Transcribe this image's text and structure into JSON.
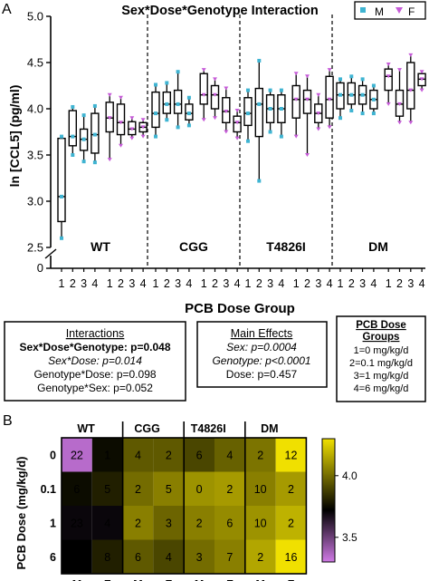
{
  "panel_a_label": "A",
  "panel_b_label": "B",
  "legend": {
    "male_label": "M",
    "female_label": "F",
    "male_color": "#3fb4d2",
    "female_color": "#c65bd8"
  },
  "chart_data": [
    {
      "type": "box",
      "title": "Sex*Dose*Genotype Interaction",
      "ylabel": "ln [CCL5] (pg/ml)",
      "xlabel": "PCB Dose Group",
      "ylim": [
        2.5,
        5.0
      ],
      "yticks": [
        "2.5",
        "3.0",
        "3.5",
        "4.0",
        "4.5",
        "5.0"
      ],
      "y_axis_break": "0",
      "genotypes": [
        "WT",
        "CGG",
        "T4826I",
        "DM"
      ],
      "doses": [
        "1",
        "2",
        "3",
        "4"
      ],
      "series": [
        {
          "genotype": "WT",
          "dose": "1",
          "whisker": [
            2.6,
            3.7
          ],
          "q1": 2.78,
          "median": 3.05,
          "q3": 3.68
        },
        {
          "genotype": "WT",
          "dose": "2",
          "whisker": [
            3.5,
            4.02
          ],
          "q1": 3.6,
          "median": 3.7,
          "q3": 3.98
        },
        {
          "genotype": "WT",
          "dose": "3",
          "whisker": [
            3.43,
            3.93
          ],
          "q1": 3.55,
          "median": 3.67,
          "q3": 3.78
        },
        {
          "genotype": "WT",
          "dose": "4",
          "whisker": [
            3.42,
            4.03
          ],
          "q1": 3.52,
          "median": 3.72,
          "q3": 3.95
        },
        {
          "genotype": "WT",
          "dose": "1b",
          "whisker": [
            3.45,
            4.15
          ],
          "q1": 3.75,
          "median": 3.9,
          "q3": 4.07
        },
        {
          "genotype": "WT",
          "dose": "2b",
          "whisker": [
            3.6,
            4.12
          ],
          "q1": 3.72,
          "median": 3.85,
          "q3": 4.05
        },
        {
          "genotype": "WT",
          "dose": "3b",
          "whisker": [
            3.68,
            3.9
          ],
          "q1": 3.72,
          "median": 3.78,
          "q3": 3.86
        },
        {
          "genotype": "WT",
          "dose": "4b",
          "whisker": [
            3.7,
            3.88
          ],
          "q1": 3.75,
          "median": 3.8,
          "q3": 3.85
        },
        {
          "genotype": "CGG",
          "dose": "1",
          "whisker": [
            3.7,
            4.26
          ],
          "q1": 3.8,
          "median": 3.95,
          "q3": 4.18
        },
        {
          "genotype": "CGG",
          "dose": "2",
          "whisker": [
            3.88,
            4.28
          ],
          "q1": 3.95,
          "median": 4.05,
          "q3": 4.18
        },
        {
          "genotype": "CGG",
          "dose": "3",
          "whisker": [
            3.8,
            4.4
          ],
          "q1": 3.95,
          "median": 4.05,
          "q3": 4.2
        },
        {
          "genotype": "CGG",
          "dose": "4",
          "whisker": [
            3.82,
            4.12
          ],
          "q1": 3.88,
          "median": 3.95,
          "q3": 4.05
        },
        {
          "genotype": "CGG",
          "dose": "1b",
          "whisker": [
            3.88,
            4.42
          ],
          "q1": 4.05,
          "median": 4.15,
          "q3": 4.38
        },
        {
          "genotype": "CGG",
          "dose": "2b",
          "whisker": [
            3.9,
            4.32
          ],
          "q1": 4.0,
          "median": 4.15,
          "q3": 4.25
        },
        {
          "genotype": "CGG",
          "dose": "3b",
          "whisker": [
            3.75,
            4.22
          ],
          "q1": 3.85,
          "median": 3.97,
          "q3": 4.12
        },
        {
          "genotype": "CGG",
          "dose": "4b",
          "whisker": [
            3.68,
            3.98
          ],
          "q1": 3.75,
          "median": 3.85,
          "q3": 3.92
        },
        {
          "genotype": "T4826I",
          "dose": "1",
          "whisker": [
            3.65,
            4.2
          ],
          "q1": 3.82,
          "median": 3.95,
          "q3": 4.12
        },
        {
          "genotype": "T4826I",
          "dose": "2",
          "whisker": [
            3.22,
            4.52
          ],
          "q1": 3.7,
          "median": 4.05,
          "q3": 4.22
        },
        {
          "genotype": "T4826I",
          "dose": "3",
          "whisker": [
            3.75,
            4.2
          ],
          "q1": 3.85,
          "median": 4.0,
          "q3": 4.15
        },
        {
          "genotype": "T4826I",
          "dose": "4",
          "whisker": [
            3.7,
            4.2
          ],
          "q1": 3.85,
          "median": 4.0,
          "q3": 4.15
        },
        {
          "genotype": "T4826I",
          "dose": "1b",
          "whisker": [
            3.7,
            4.38
          ],
          "q1": 3.9,
          "median": 4.1,
          "q3": 4.25
        },
        {
          "genotype": "T4826I",
          "dose": "2b",
          "whisker": [
            3.5,
            4.35
          ],
          "q1": 3.95,
          "median": 4.1,
          "q3": 4.2
        },
        {
          "genotype": "T4826I",
          "dose": "3b",
          "whisker": [
            3.78,
            4.15
          ],
          "q1": 3.85,
          "median": 3.95,
          "q3": 4.05
        },
        {
          "genotype": "T4826I",
          "dose": "4b",
          "whisker": [
            3.8,
            4.42
          ],
          "q1": 3.9,
          "median": 4.1,
          "q3": 4.35
        },
        {
          "genotype": "DM",
          "dose": "1",
          "whisker": [
            3.9,
            4.32
          ],
          "q1": 4.0,
          "median": 4.15,
          "q3": 4.28
        },
        {
          "genotype": "DM",
          "dose": "2",
          "whisker": [
            3.98,
            4.35
          ],
          "q1": 4.05,
          "median": 4.15,
          "q3": 4.28
        },
        {
          "genotype": "DM",
          "dose": "3",
          "whisker": [
            3.95,
            4.32
          ],
          "q1": 4.05,
          "median": 4.15,
          "q3": 4.25
        },
        {
          "genotype": "DM",
          "dose": "4",
          "whisker": [
            3.95,
            4.25
          ],
          "q1": 4.0,
          "median": 4.1,
          "q3": 4.2
        },
        {
          "genotype": "DM",
          "dose": "1b",
          "whisker": [
            4.05,
            4.48
          ],
          "q1": 4.2,
          "median": 4.35,
          "q3": 4.43
        },
        {
          "genotype": "DM",
          "dose": "2b",
          "whisker": [
            3.85,
            4.42
          ],
          "q1": 3.92,
          "median": 4.05,
          "q3": 4.2
        },
        {
          "genotype": "DM",
          "dose": "3b",
          "whisker": [
            3.85,
            4.58
          ],
          "q1": 4.0,
          "median": 4.2,
          "q3": 4.5
        },
        {
          "genotype": "DM",
          "dose": "4b",
          "whisker": [
            4.2,
            4.4
          ],
          "q1": 4.25,
          "median": 4.32,
          "q3": 4.38
        }
      ]
    },
    {
      "type": "heatmap",
      "ylabel": "PCB Dose (mg/kg/d)",
      "rows": [
        "0",
        "0.1",
        "1",
        "6"
      ],
      "genotypes": [
        "WT",
        "CGG",
        "T4826I",
        "DM"
      ],
      "columns": [
        "M",
        "F",
        "M",
        "F",
        "M",
        "F",
        "M",
        "F"
      ],
      "colorbar": {
        "range": [
          3.3,
          4.3
        ],
        "ticks": [
          "4.0",
          "3.5"
        ],
        "low_color": "#d07ae6",
        "mid_color": "#000000",
        "high_color": "#f0e000"
      },
      "values": [
        [
          3.35,
          3.75,
          3.95,
          3.95,
          3.9,
          3.97,
          4.02,
          4.3
        ],
        [
          3.75,
          3.8,
          4.0,
          4.05,
          4.1,
          4.12,
          4.05,
          4.12
        ],
        [
          3.7,
          3.7,
          4.05,
          3.98,
          4.05,
          4.08,
          4.1,
          4.18
        ],
        [
          3.72,
          3.8,
          3.95,
          3.9,
          4.0,
          4.05,
          4.15,
          4.33
        ]
      ],
      "annotations": [
        [
          "22",
          "1",
          "4",
          "2",
          "6",
          "4",
          "2",
          "12"
        ],
        [
          "6",
          "5",
          "2",
          "5",
          "0",
          "2",
          "10",
          "2"
        ],
        [
          "23",
          "4",
          "2",
          "3",
          "2",
          "6",
          "10",
          "2"
        ],
        [
          "5",
          "8",
          "6",
          "4",
          "3",
          "7",
          "2",
          "16"
        ]
      ]
    }
  ],
  "stats": {
    "interactions": {
      "title": "Interactions",
      "line1": "Sex*Dose*Genotype: p=0.048",
      "line2": "Sex*Dose: p=0.014",
      "line3": "Genotype*Dose: p=0.098",
      "line4": "Genotype*Sex: p=0.052"
    },
    "main_effects": {
      "title": "Main Effects",
      "line1": "Sex: p=0.0004",
      "line2": "Genotype: p<0.0001",
      "line3": "Dose: p=0.457"
    },
    "dose_groups": {
      "title1": "PCB Dose",
      "title2": "Groups",
      "line1": "1=0 mg/kg/d",
      "line2": "2=0.1 mg/kg/d",
      "line3": "3=1 mg/kg/d",
      "line4": "4=6 mg/kg/d"
    }
  }
}
